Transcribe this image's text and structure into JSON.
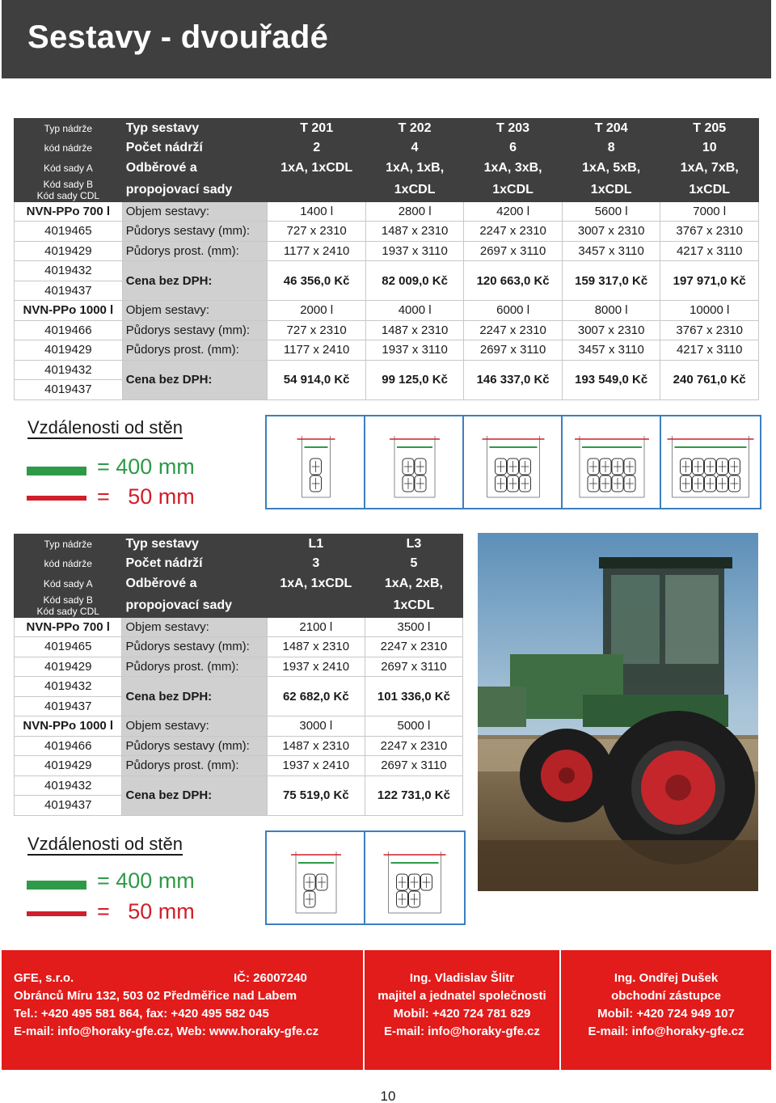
{
  "title": "Sestavy - dvouřadé",
  "key_labels": [
    "Typ nádrže",
    "kód nádrže",
    "Kód sady A",
    "Kód sady B",
    "Kód sady CDL"
  ],
  "row_labels": {
    "typ": "Typ sestavy",
    "pocet": "Počet nádrží",
    "odber1": "Odběrové a",
    "odber2": "propojovací sady",
    "objem": "Objem sestavy:",
    "pudorys_sestavy": "Půdorys sestavy (mm):",
    "pudorys_prost": "Půdorys prost. (mm):",
    "cena": "Cena bez DPH:"
  },
  "table1": {
    "types": [
      "T 201",
      "T 202",
      "T 203",
      "T 204",
      "T 205"
    ],
    "counts": [
      "2",
      "4",
      "6",
      "8",
      "10"
    ],
    "sets1": [
      "1xA, 1xCDL",
      "1xA, 1xB,",
      "1xA, 3xB,",
      "1xA, 5xB,",
      "1xA, 7xB,"
    ],
    "sets2": [
      "",
      "1xCDL",
      "1xCDL",
      "1xCDL",
      "1xCDL"
    ],
    "groups": [
      {
        "tank": "NVN-PPo 700 l",
        "code_sestavy": "4019465",
        "code_prost": "4019429",
        "code_cena1": "4019432",
        "code_cena2": "4019437",
        "objem": [
          "1400 l",
          "2800 l",
          "4200 l",
          "5600 l",
          "7000 l"
        ],
        "pudorys_sestavy": [
          "727 x 2310",
          "1487 x 2310",
          "2247 x 2310",
          "3007 x 2310",
          "3767 x 2310"
        ],
        "pudorys_prost": [
          "1177 x 2410",
          "1937 x 3110",
          "2697 x 3110",
          "3457 x 3110",
          "4217 x 3110"
        ],
        "cena": [
          "46 356,0 Kč",
          "82 009,0 Kč",
          "120 663,0 Kč",
          "159 317,0 Kč",
          "197 971,0 Kč"
        ]
      },
      {
        "tank": "NVN-PPo 1000 l",
        "code_sestavy": "4019466",
        "code_prost": "4019429",
        "code_cena1": "4019432",
        "code_cena2": "4019437",
        "objem": [
          "2000 l",
          "4000 l",
          "6000 l",
          "8000 l",
          "10000 l"
        ],
        "pudorys_sestavy": [
          "727 x 2310",
          "1487 x 2310",
          "2247 x 2310",
          "3007 x 2310",
          "3767 x 2310"
        ],
        "pudorys_prost": [
          "1177 x 2410",
          "1937 x 3110",
          "2697 x 3110",
          "3457 x 3110",
          "4217 x 3110"
        ],
        "cena": [
          "54 914,0 Kč",
          "99 125,0 Kč",
          "146 337,0 Kč",
          "193 549,0 Kč",
          "240 761,0 Kč"
        ]
      }
    ]
  },
  "table2": {
    "types": [
      "L1",
      "L3"
    ],
    "counts": [
      "3",
      "5"
    ],
    "sets1": [
      "1xA, 1xCDL",
      "1xA, 2xB,"
    ],
    "sets2": [
      "",
      "1xCDL"
    ],
    "groups": [
      {
        "tank": "NVN-PPo 700 l",
        "code_sestavy": "4019465",
        "code_prost": "4019429",
        "code_cena1": "4019432",
        "code_cena2": "4019437",
        "objem": [
          "2100 l",
          "3500 l"
        ],
        "pudorys_sestavy": [
          "1487 x 2310",
          "2247 x 2310"
        ],
        "pudorys_prost": [
          "1937 x 2410",
          "2697 x 3110"
        ],
        "cena": [
          "62 682,0 Kč",
          "101 336,0 Kč"
        ]
      },
      {
        "tank": "NVN-PPo 1000 l",
        "code_sestavy": "4019466",
        "code_prost": "4019429",
        "code_cena1": "4019432",
        "code_cena2": "4019437",
        "objem": [
          "3000 l",
          "5000 l"
        ],
        "pudorys_sestavy": [
          "1487 x 2310",
          "2247 x 2310"
        ],
        "pudorys_prost": [
          "1937 x 2410",
          "2697 x 3110"
        ],
        "cena": [
          "75 519,0 Kč",
          "122 731,0 Kč"
        ]
      }
    ]
  },
  "distances": {
    "heading": "Vzdálenosti od stěn",
    "green": "= 400 mm",
    "red": "=   50 mm",
    "green_color": "#2e9a48",
    "red_color": "#d01f2a"
  },
  "diagram_tanks_table1": [
    2,
    4,
    6,
    8,
    10
  ],
  "diagram_tanks_table2": [
    3,
    5
  ],
  "footer": {
    "c1": {
      "company": "GFE, s.r.o.",
      "ico": "IČ: 26007240",
      "addr": "Obránců Míru 132, 503 02 Předměřice nad Labem",
      "tel": "Tel.: +420 495 581 864, fax: +420 495 582 045",
      "email": "E-mail: info@horaky-gfe.cz, Web: www.horaky-gfe.cz"
    },
    "c2": {
      "name": "Ing. Vladislav Šlitr",
      "role": "majitel a jednatel společnosti",
      "mobil": "Mobil: +420 724 781 829",
      "email": "E-mail: info@horaky-gfe.cz"
    },
    "c3": {
      "name": "Ing. Ondřej Dušek",
      "role": "obchodní zástupce",
      "mobil": "Mobil: +420 724 949 107",
      "email": "E-mail: info@horaky-gfe.cz"
    },
    "bg_color": "#e21b1b"
  },
  "page_number": "10"
}
